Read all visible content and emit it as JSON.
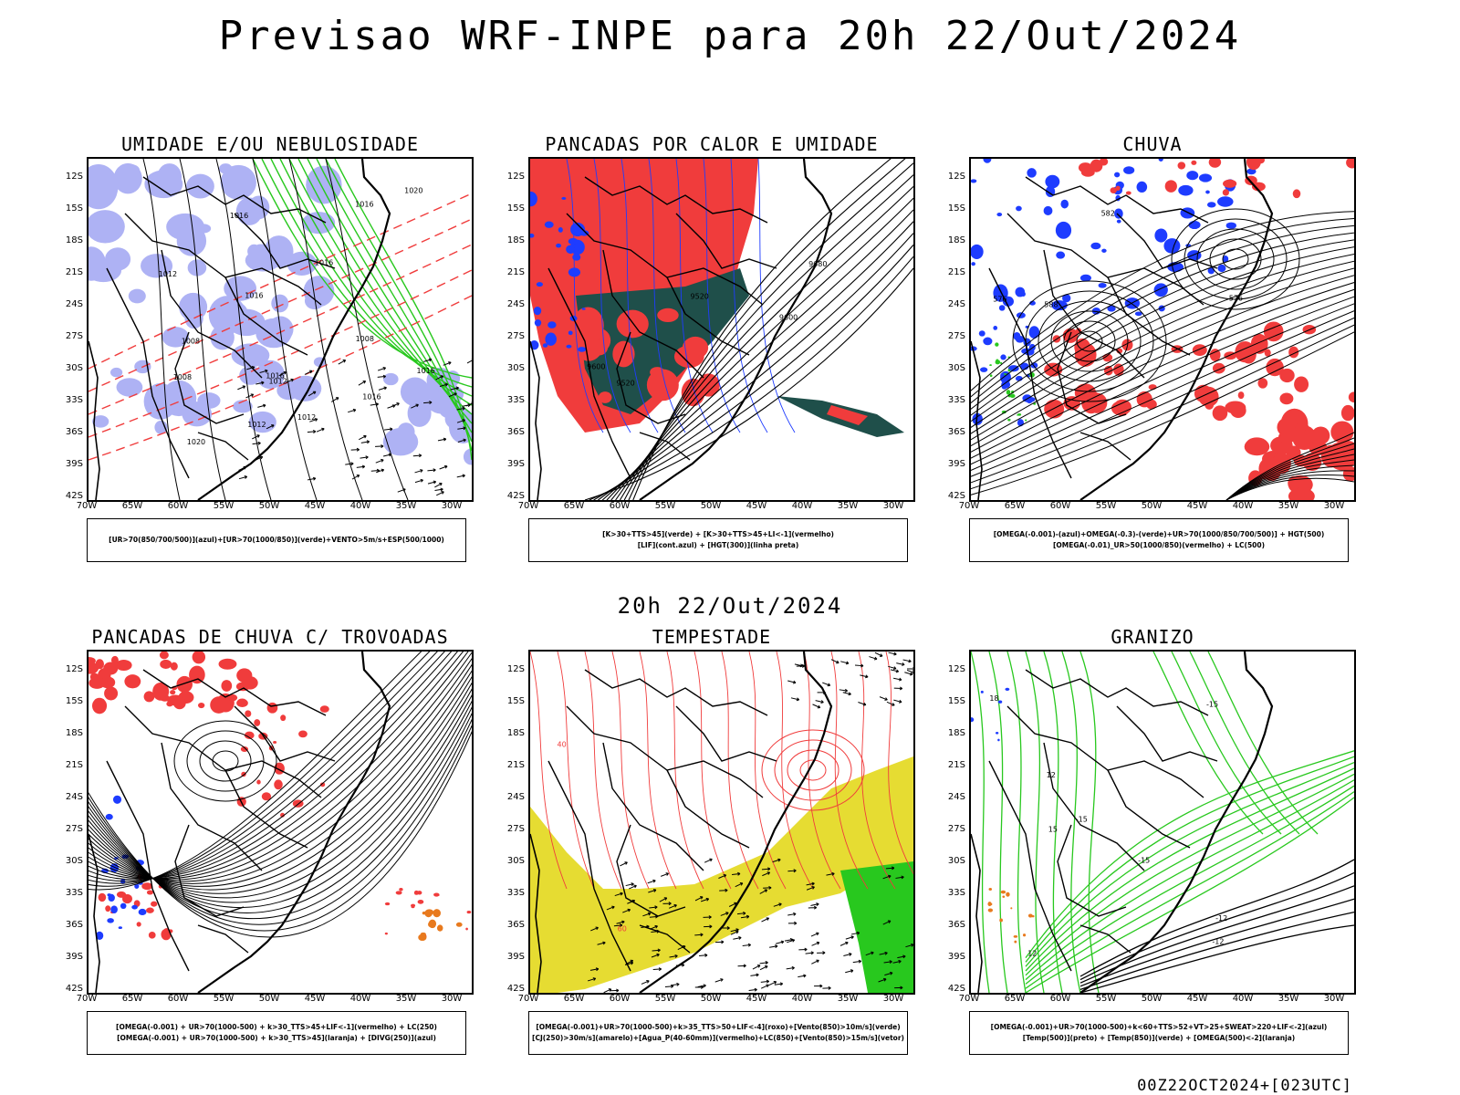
{
  "main_title": "Previsao WRF-INPE  para 20h 22/Out/2024",
  "mid_title": "20h 22/Out/2024",
  "footer": "00Z22OCT2024+[023UTC]",
  "axes": {
    "lat_labels": [
      "12S",
      "15S",
      "18S",
      "21S",
      "24S",
      "27S",
      "30S",
      "33S",
      "36S",
      "39S",
      "42S"
    ],
    "lon_labels": [
      "70W",
      "65W",
      "60W",
      "55W",
      "50W",
      "45W",
      "40W",
      "35W",
      "30W"
    ]
  },
  "colors": {
    "red": "#f03c3c",
    "green": "#28c81e",
    "blue": "#1e3cff",
    "lavender": "#aeb2f4",
    "teal": "#1f4f4a",
    "yellow": "#e6dc32",
    "orange": "#e87a1e",
    "purple": "#8c32c8"
  },
  "panels": [
    {
      "title": "UMIDADE E/OU NEBULOSIDADE",
      "legend": [
        "[UR>70(850/700/500)](azul)+[UR>70(1000/850)](verde)+VENTO>5m/s+ESP(500/1000)"
      ],
      "contour_labels": [
        "1008",
        "1012",
        "1012",
        "1016",
        "1016",
        "1008",
        "1008",
        "1016",
        "1016",
        "1020",
        "1020",
        "1012",
        "1016",
        "1012",
        "1016",
        "1016"
      ]
    },
    {
      "title": "PANCADAS POR CALOR E UMIDADE",
      "legend": [
        "[K>30+TTS>45](verde) + [K>30+TTS>45+LI<-1](vermelho)",
        "[LIF](cont.azul) + [HGT(300)](linha preta)"
      ],
      "contour_labels": [
        "9680",
        "9600",
        "9520",
        "9600",
        "9520"
      ]
    },
    {
      "title": "CHUVA",
      "legend": [
        "[OMEGA(-0.001)-(azul)+OMEGA(-0.3)-(verde)+UR>70(1000/850/700/500)] + HGT(500)",
        "[OMEGA(-0.01)_UR>50(1000/850)(vermelho) + LC(500)"
      ],
      "contour_labels": [
        "588",
        "576",
        "582",
        "576"
      ]
    },
    {
      "title": "PANCADAS DE CHUVA C/ TROVOADAS",
      "legend": [
        "[OMEGA(-0.001) + UR>70(1000-500) + k>30_TTS>45+LIF<-1](vermelho) + LC(250)",
        "[OMEGA(-0.001) + UR>70(1000-500) + k>30_TTS>45](laranja) + [DIVG(250)](azul)"
      ],
      "contour_labels": []
    },
    {
      "title": "TEMPESTADE",
      "legend": [
        "[OMEGA(-0.001)+UR>70(1000-500)+k>35_TTS>50+LIF<-4](roxo)+[Vento(850)>10m/s](verde)",
        "[CJ(250)>30m/s](amarelo)+[Agua_P(40-60mm)](vermelho)+LC(850)+[Vento(850)>15m/s](vetor)"
      ],
      "contour_labels": [
        "40",
        "60"
      ]
    },
    {
      "title": "GRANIZO",
      "legend": [
        "[OMEGA(-0.001)+UR>70(1000-500)+k<60+TTS>52+VT>25+SWEAT>220+LIF<-2](azul)",
        "[Temp(500)](preto) + [Temp(850)](verde) + [OMEGA(500)<-2](laranja)"
      ],
      "contour_labels": [
        "-15",
        "-15",
        "-15",
        "-12",
        "15",
        "18",
        "12",
        "-12",
        "12"
      ]
    }
  ]
}
